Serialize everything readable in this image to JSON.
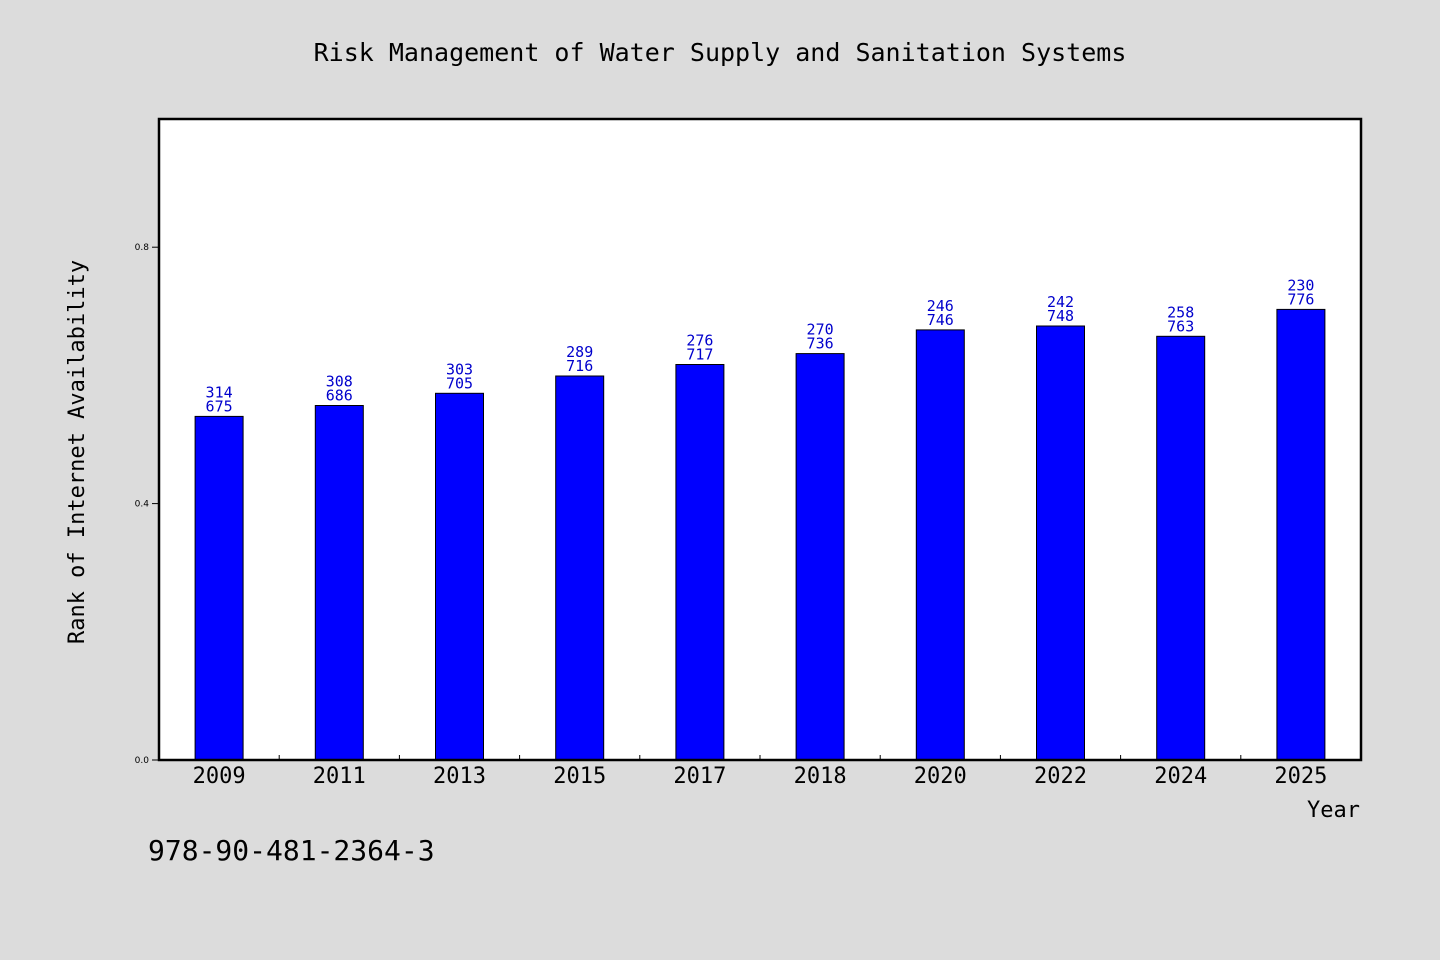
{
  "chart_data": {
    "type": "bar",
    "title": "Risk Management of Water Supply and Sanitation Systems",
    "xlabel": "Year",
    "ylabel": "Rank of Internet Availability",
    "categories": [
      "2009",
      "2011",
      "2013",
      "2015",
      "2017",
      "2018",
      "2020",
      "2022",
      "2024",
      "2025"
    ],
    "values": [
      0.536,
      0.553,
      0.572,
      0.599,
      0.617,
      0.634,
      0.671,
      0.677,
      0.661,
      0.703
    ],
    "data_labels_top": [
      "314",
      "308",
      "303",
      "289",
      "276",
      "270",
      "246",
      "242",
      "258",
      "230"
    ],
    "data_labels_bottom": [
      "675",
      "686",
      "705",
      "716",
      "717",
      "736",
      "746",
      "748",
      "763",
      "776"
    ],
    "ylim": [
      0,
      1.0
    ],
    "yticks": [
      0.0,
      0.4,
      0.8
    ],
    "ytick_labels": [
      "0.0",
      "0.4",
      "0.8"
    ],
    "grid": false,
    "bar_color": "#0000ff",
    "label_color": "#0000cc",
    "background_color": "#dcdcdc",
    "plot_background": "#ffffff"
  },
  "isbn": "978-90-481-2364-3"
}
